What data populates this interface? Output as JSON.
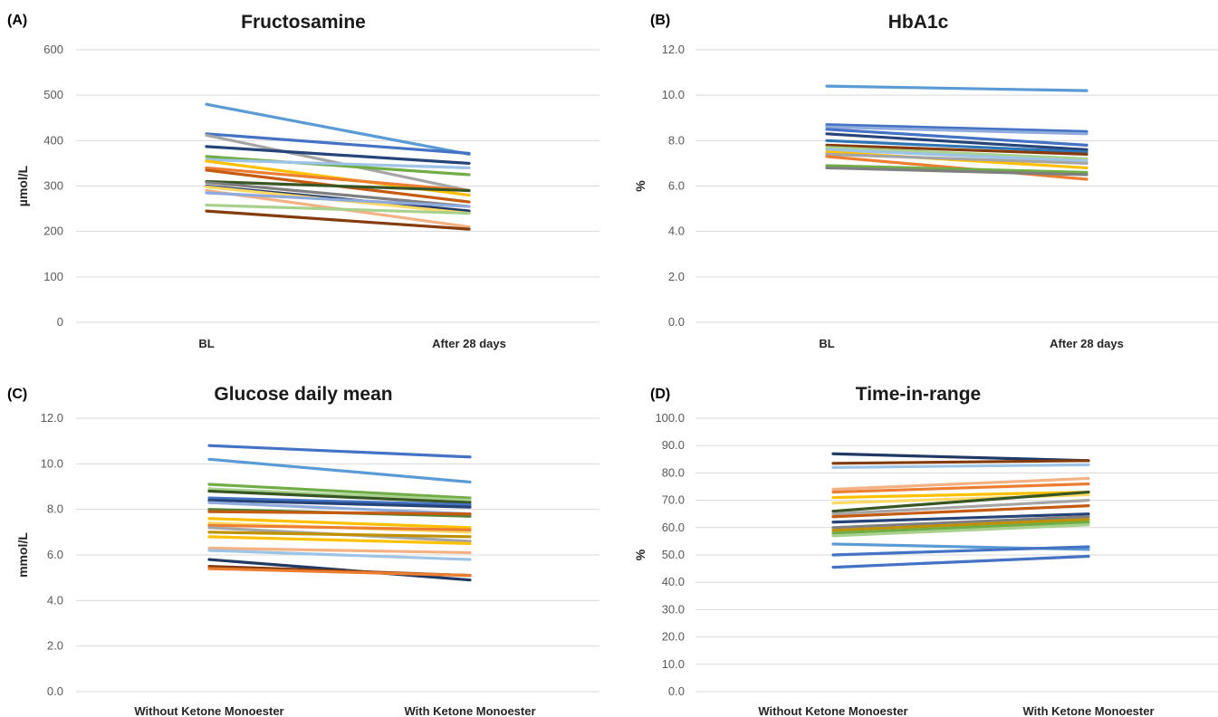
{
  "chart_data": [
    {
      "type": "line",
      "panel_label": "(A)",
      "title": "Fructosamine",
      "ylabel": "µmol/L",
      "categories": [
        "BL",
        "After 28 days"
      ],
      "ylim": [
        0,
        600
      ],
      "yticks": [
        "0",
        "100",
        "200",
        "300",
        "400",
        "500",
        "600"
      ],
      "series": [
        {
          "values": [
            480,
            370
          ],
          "color": "#5B9BD5"
        },
        {
          "values": [
            415,
            372
          ],
          "color": "#4472C4"
        },
        {
          "values": [
            412,
            290
          ],
          "color": "#A5A5A5"
        },
        {
          "values": [
            387,
            350
          ],
          "color": "#264478"
        },
        {
          "values": [
            365,
            325
          ],
          "color": "#70AD47"
        },
        {
          "values": [
            358,
            340
          ],
          "color": "#9DC3E6"
        },
        {
          "values": [
            355,
            280
          ],
          "color": "#FFC000"
        },
        {
          "values": [
            340,
            290
          ],
          "color": "#ED7D31"
        },
        {
          "values": [
            335,
            265
          ],
          "color": "#C55A11"
        },
        {
          "values": [
            310,
            290
          ],
          "color": "#375623"
        },
        {
          "values": [
            308,
            255
          ],
          "color": "#7F7F7F"
        },
        {
          "values": [
            300,
            245
          ],
          "color": "#1F3864"
        },
        {
          "values": [
            298,
            240
          ],
          "color": "#FFD966"
        },
        {
          "values": [
            290,
            210
          ],
          "color": "#F4B183"
        },
        {
          "values": [
            285,
            255
          ],
          "color": "#8FAADC"
        },
        {
          "values": [
            258,
            240
          ],
          "color": "#A9D18E"
        },
        {
          "values": [
            245,
            205
          ],
          "color": "#843C0C"
        }
      ]
    },
    {
      "type": "line",
      "panel_label": "(B)",
      "title": "HbA1c",
      "ylabel": "%",
      "categories": [
        "BL",
        "After 28 days"
      ],
      "ylim": [
        0,
        12
      ],
      "yticks": [
        "0.0",
        "2.0",
        "4.0",
        "6.0",
        "8.0",
        "10.0",
        "12.0"
      ],
      "series": [
        {
          "values": [
            10.4,
            10.2
          ],
          "color": "#5B9BD5"
        },
        {
          "values": [
            8.7,
            8.4
          ],
          "color": "#4472C4"
        },
        {
          "values": [
            8.6,
            8.3
          ],
          "color": "#8FAADC"
        },
        {
          "values": [
            8.5,
            7.8
          ],
          "color": "#4472C4"
        },
        {
          "values": [
            8.3,
            7.6
          ],
          "color": "#264478"
        },
        {
          "values": [
            8.0,
            7.5
          ],
          "color": "#2E75B6"
        },
        {
          "values": [
            7.8,
            7.4
          ],
          "color": "#843C0C"
        },
        {
          "values": [
            7.7,
            7.2
          ],
          "color": "#A9D18E"
        },
        {
          "values": [
            7.6,
            7.1
          ],
          "color": "#9DC3E6"
        },
        {
          "values": [
            7.5,
            6.8
          ],
          "color": "#FFC000"
        },
        {
          "values": [
            7.4,
            7.0
          ],
          "color": "#A5A5A5"
        },
        {
          "values": [
            7.3,
            6.3
          ],
          "color": "#ED7D31"
        },
        {
          "values": [
            6.9,
            6.6
          ],
          "color": "#70AD47"
        },
        {
          "values": [
            6.8,
            6.5
          ],
          "color": "#7F7F7F"
        }
      ]
    },
    {
      "type": "line",
      "panel_label": "(C)",
      "title": "Glucose daily mean",
      "ylabel": "mmol/L",
      "categories": [
        "Without Ketone Monoester",
        "With Ketone Monoester"
      ],
      "ylim": [
        0,
        12
      ],
      "yticks": [
        "0.0",
        "2.0",
        "4.0",
        "6.0",
        "8.0",
        "10.0",
        "12.0"
      ],
      "series": [
        {
          "values": [
            10.8,
            10.3
          ],
          "color": "#4472C4"
        },
        {
          "values": [
            10.2,
            9.2
          ],
          "color": "#5B9BD5"
        },
        {
          "values": [
            9.1,
            8.5
          ],
          "color": "#70AD47"
        },
        {
          "values": [
            8.9,
            8.4
          ],
          "color": "#A9D18E"
        },
        {
          "values": [
            8.8,
            8.3
          ],
          "color": "#375623"
        },
        {
          "values": [
            8.5,
            8.2
          ],
          "color": "#4472C4"
        },
        {
          "values": [
            8.4,
            8.1
          ],
          "color": "#264478"
        },
        {
          "values": [
            8.3,
            7.8
          ],
          "color": "#8FAADC"
        },
        {
          "values": [
            8.0,
            7.7
          ],
          "color": "#548235"
        },
        {
          "values": [
            7.9,
            7.8
          ],
          "color": "#C55A11"
        },
        {
          "values": [
            7.6,
            7.2
          ],
          "color": "#FFC000"
        },
        {
          "values": [
            7.4,
            7.0
          ],
          "color": "#FFD966"
        },
        {
          "values": [
            7.3,
            7.1
          ],
          "color": "#ED7D31"
        },
        {
          "values": [
            7.2,
            6.6
          ],
          "color": "#A5A5A5"
        },
        {
          "values": [
            7.0,
            6.8
          ],
          "color": "#BF9000"
        },
        {
          "values": [
            6.8,
            6.5
          ],
          "color": "#FFC000"
        },
        {
          "values": [
            6.3,
            6.1
          ],
          "color": "#F4B183"
        },
        {
          "values": [
            6.2,
            5.8
          ],
          "color": "#9DC3E6"
        },
        {
          "values": [
            5.8,
            4.9
          ],
          "color": "#1F3864"
        },
        {
          "values": [
            5.5,
            5.1
          ],
          "color": "#843C0C"
        },
        {
          "values": [
            5.4,
            5.1
          ],
          "color": "#ED7D31"
        }
      ]
    },
    {
      "type": "line",
      "panel_label": "(D)",
      "title": "Time-in-range",
      "ylabel": "%",
      "categories": [
        "Without Ketone Monoester",
        "With Ketone Monoester"
      ],
      "ylim": [
        0,
        100
      ],
      "yticks": [
        "0.0",
        "10.0",
        "20.0",
        "30.0",
        "40.0",
        "50.0",
        "60.0",
        "70.0",
        "80.0",
        "90.0",
        "100.0"
      ],
      "series": [
        {
          "values": [
            87.0,
            84.5
          ],
          "color": "#1F3864"
        },
        {
          "values": [
            83.5,
            84.5
          ],
          "color": "#843C0C"
        },
        {
          "values": [
            82.0,
            83.0
          ],
          "color": "#9DC3E6"
        },
        {
          "values": [
            74.0,
            78.0
          ],
          "color": "#F4B183"
        },
        {
          "values": [
            73.0,
            76.0
          ],
          "color": "#ED7D31"
        },
        {
          "values": [
            71.0,
            73.0
          ],
          "color": "#FFC000"
        },
        {
          "values": [
            69.0,
            72.0
          ],
          "color": "#FFD966"
        },
        {
          "values": [
            66.0,
            73.0
          ],
          "color": "#375623"
        },
        {
          "values": [
            65.0,
            70.0
          ],
          "color": "#A5A5A5"
        },
        {
          "values": [
            64.0,
            68.0
          ],
          "color": "#C55A11"
        },
        {
          "values": [
            62.0,
            65.0
          ],
          "color": "#264478"
        },
        {
          "values": [
            60.0,
            64.0
          ],
          "color": "#7F7F7F"
        },
        {
          "values": [
            59.0,
            63.0
          ],
          "color": "#BF9000"
        },
        {
          "values": [
            58.0,
            62.0
          ],
          "color": "#70AD47"
        },
        {
          "values": [
            57.0,
            61.0
          ],
          "color": "#A9D18E"
        },
        {
          "values": [
            54.0,
            52.0
          ],
          "color": "#5B9BD5"
        },
        {
          "values": [
            50.0,
            53.0
          ],
          "color": "#4472C4"
        },
        {
          "values": [
            45.5,
            49.5
          ],
          "color": "#4472C4"
        }
      ]
    }
  ]
}
